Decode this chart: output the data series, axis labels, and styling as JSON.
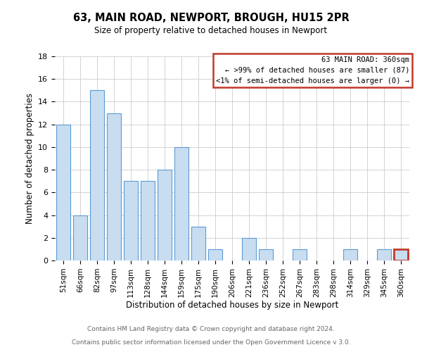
{
  "title": "63, MAIN ROAD, NEWPORT, BROUGH, HU15 2PR",
  "subtitle": "Size of property relative to detached houses in Newport",
  "xlabel": "Distribution of detached houses by size in Newport",
  "ylabel": "Number of detached properties",
  "bar_labels": [
    "51sqm",
    "66sqm",
    "82sqm",
    "97sqm",
    "113sqm",
    "128sqm",
    "144sqm",
    "159sqm",
    "175sqm",
    "190sqm",
    "206sqm",
    "221sqm",
    "236sqm",
    "252sqm",
    "267sqm",
    "283sqm",
    "298sqm",
    "314sqm",
    "329sqm",
    "345sqm",
    "360sqm"
  ],
  "bar_values": [
    12,
    4,
    15,
    13,
    7,
    7,
    8,
    10,
    3,
    1,
    0,
    2,
    1,
    0,
    1,
    0,
    0,
    1,
    0,
    1,
    1
  ],
  "bar_color": "#c9ddf0",
  "bar_edge_color": "#5b9bd5",
  "highlight_bar_index": 20,
  "highlight_bar_edge_color": "#c0392b",
  "legend_box_edge_color": "#c0392b",
  "legend_title": "63 MAIN ROAD: 360sqm",
  "legend_line1": "← >99% of detached houses are smaller (87)",
  "legend_line2": "<1% of semi-detached houses are larger (0) →",
  "footer_line1": "Contains HM Land Registry data © Crown copyright and database right 2024.",
  "footer_line2": "Contains public sector information licensed under the Open Government Licence v 3.0.",
  "ylim": [
    0,
    18
  ],
  "yticks": [
    0,
    2,
    4,
    6,
    8,
    10,
    12,
    14,
    16,
    18
  ],
  "background_color": "#ffffff",
  "grid_color": "#cccccc",
  "footer_color": "#666666"
}
